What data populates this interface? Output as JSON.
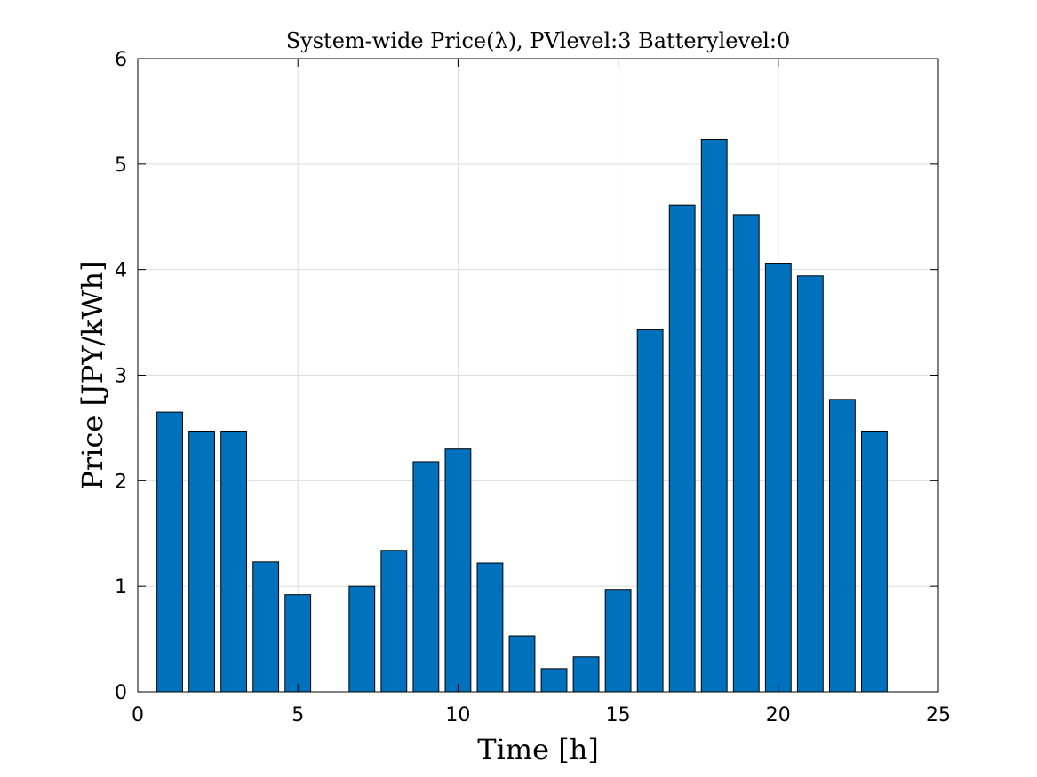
{
  "chart_data": {
    "type": "bar",
    "title": "System-wide Price(λ), PVlevel:3 Batterylevel:0",
    "xlabel": "Time [h]",
    "ylabel": "Price [JPY/kWh]",
    "xlim": [
      0,
      25
    ],
    "ylim": [
      0,
      6
    ],
    "xticks": [
      "0",
      "5",
      "10",
      "15",
      "20",
      "25"
    ],
    "yticks": [
      "0",
      "1",
      "2",
      "3",
      "4",
      "5",
      "6"
    ],
    "grid": true,
    "bar_color": "#0072BD",
    "x": [
      1,
      2,
      3,
      4,
      5,
      6,
      7,
      8,
      9,
      10,
      11,
      12,
      13,
      14,
      15,
      16,
      17,
      18,
      19,
      20,
      21,
      22,
      23
    ],
    "values": [
      2.65,
      2.47,
      2.47,
      1.23,
      0.92,
      0,
      1.0,
      1.34,
      2.18,
      2.3,
      1.22,
      0.53,
      0.22,
      0.33,
      0.97,
      3.43,
      4.61,
      5.23,
      4.52,
      4.06,
      3.94,
      2.77,
      2.47
    ]
  }
}
